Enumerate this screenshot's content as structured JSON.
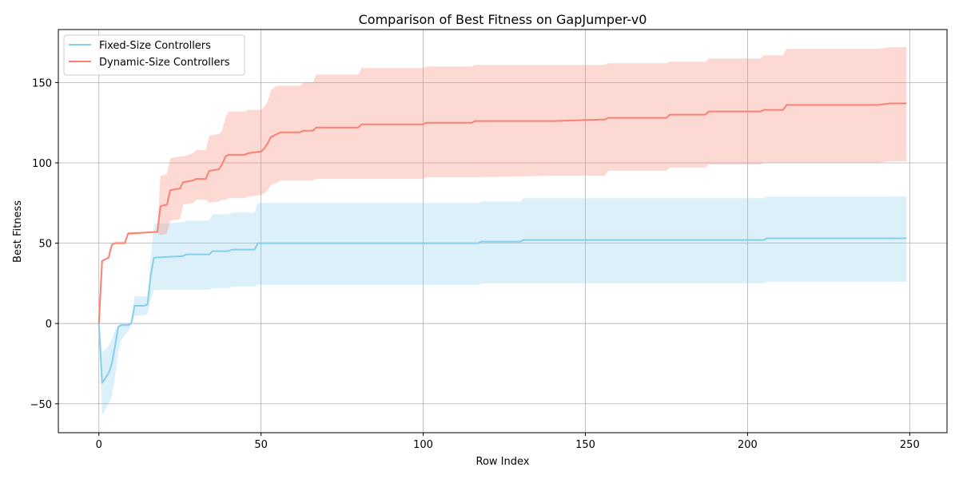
{
  "chart_data": {
    "type": "line",
    "title": "Comparison of Best Fitness on GapJumper-v0",
    "xlabel": "Row Index",
    "ylabel": "Best Fitness",
    "xlim": [
      -12.5,
      261.5
    ],
    "ylim": [
      -68,
      183
    ],
    "xticks": [
      0,
      50,
      100,
      150,
      200,
      250
    ],
    "yticks": [
      -50,
      0,
      50,
      100,
      150
    ],
    "grid": true,
    "legend_position": "top-left",
    "series": [
      {
        "name": "Fixed-Size Controllers",
        "color": "#87CEEB",
        "fill_opacity": 0.3,
        "x": [
          0,
          1,
          3,
          4,
          5,
          6,
          7,
          9,
          10,
          11,
          14,
          15,
          16,
          17,
          26,
          27,
          34,
          35,
          40,
          41,
          48,
          49,
          54,
          55,
          117,
          118,
          130,
          131,
          205,
          206,
          249
        ],
        "mean": [
          0,
          -37,
          -31,
          -25,
          -14,
          -2,
          -1,
          -1,
          0,
          11,
          11,
          12,
          30,
          41,
          42,
          43,
          43,
          45,
          45,
          46,
          46,
          50,
          50,
          50,
          50,
          51,
          51,
          52,
          52,
          53,
          53
        ],
        "lower": [
          0,
          -57,
          -50,
          -45,
          -33,
          -18,
          -10,
          -5,
          -1,
          5,
          5,
          6,
          15,
          21,
          21,
          21,
          21,
          22,
          22,
          23,
          23,
          24,
          24,
          24,
          24,
          25,
          25,
          25,
          25,
          26,
          26
        ],
        "upper": [
          0,
          -18,
          -14,
          -10,
          -4,
          -1,
          0,
          0,
          0,
          17,
          17,
          17,
          40,
          62,
          63,
          64,
          64,
          68,
          68,
          69,
          69,
          75,
          75,
          75,
          75,
          76,
          76,
          78,
          78,
          79,
          79
        ]
      },
      {
        "name": "Dynamic-Size Controllers",
        "color": "#FA8072",
        "fill_opacity": 0.3,
        "x": [
          0,
          1,
          2,
          3,
          4,
          5,
          8,
          9,
          18,
          19,
          21,
          22,
          25,
          26,
          29,
          30,
          33,
          34,
          37,
          38,
          39,
          40,
          45,
          46,
          50,
          51,
          52,
          53,
          54,
          55,
          56,
          62,
          63,
          66,
          67,
          80,
          81,
          100,
          101,
          115,
          116,
          140,
          156,
          157,
          175,
          176,
          187,
          188,
          204,
          205,
          211,
          212,
          240,
          244,
          249
        ],
        "mean": [
          0,
          39,
          40,
          41,
          49,
          50,
          50,
          56,
          57,
          73,
          74,
          83,
          84,
          88,
          89,
          90,
          90,
          95,
          96,
          99,
          104,
          105,
          105,
          106,
          107,
          109,
          112,
          116,
          117,
          118,
          119,
          119,
          120,
          120,
          122,
          122,
          124,
          124,
          125,
          125,
          126,
          126,
          127,
          128,
          128,
          130,
          130,
          132,
          132,
          133,
          133,
          136,
          136,
          137,
          137
        ],
        "lower": [
          0,
          39,
          40,
          41,
          49,
          50,
          50,
          55,
          57,
          55,
          56,
          64,
          65,
          74,
          75,
          77,
          77,
          75,
          76,
          77,
          77,
          78,
          78,
          79,
          80,
          81,
          83,
          86,
          87,
          88,
          89,
          89,
          89,
          89,
          90,
          90,
          90,
          90,
          91,
          91,
          91,
          92,
          92,
          95,
          95,
          97,
          97,
          99,
          99,
          100,
          100,
          100,
          100,
          101,
          101
        ],
        "upper": [
          0,
          39,
          40,
          41,
          49,
          51,
          51,
          57,
          57,
          92,
          93,
          103,
          104,
          104,
          106,
          108,
          108,
          117,
          118,
          120,
          128,
          132,
          132,
          133,
          133,
          135,
          138,
          145,
          147,
          148,
          148,
          148,
          150,
          150,
          155,
          155,
          159,
          159,
          160,
          160,
          161,
          161,
          161,
          162,
          162,
          163,
          163,
          165,
          165,
          167,
          167,
          171,
          171,
          172,
          172
        ]
      }
    ]
  }
}
